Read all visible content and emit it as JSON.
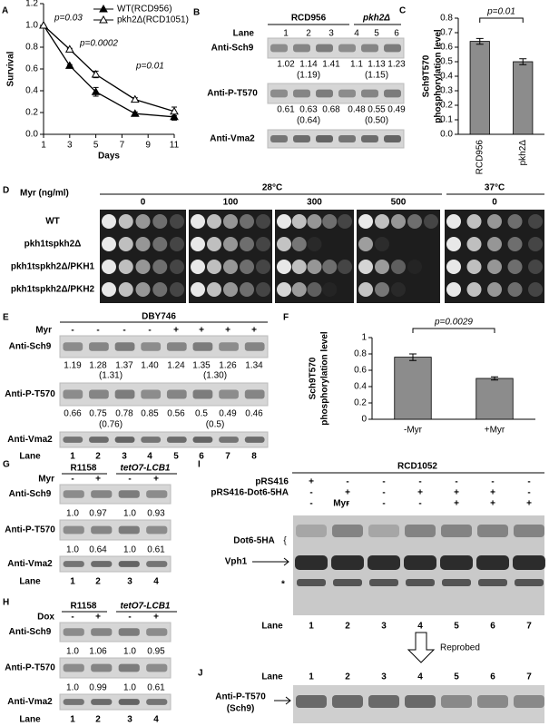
{
  "chart_data": [
    {
      "type": "line",
      "label": "A",
      "xlabel": "Days",
      "ylabel": "Survival",
      "x": [
        1,
        3,
        5,
        8,
        11
      ],
      "xlim": [
        1,
        11
      ],
      "xticks": [
        1,
        3,
        5,
        7,
        9,
        11
      ],
      "ylim": [
        0,
        1.2
      ],
      "yticks": [
        {
          "value": 0,
          "label": "0.0"
        },
        0.2,
        0.4,
        0.6,
        0.8,
        {
          "value": 1,
          "label": "1.0"
        },
        1.2
      ],
      "legend": "upper right",
      "series": [
        {
          "name": "WT(RCD956)",
          "color": "#000000",
          "marker": "filled",
          "values": [
            1,
            0.63,
            0.39,
            0.19,
            0.16
          ],
          "errors": [
            0,
            0.01,
            0.04,
            0.015,
            0.03
          ]
        },
        {
          "name": "pkh2Δ(RCD1051)",
          "color": "#000000",
          "marker": "hollow",
          "values": [
            1,
            0.78,
            0.55,
            0.32,
            0.21
          ],
          "errors": [
            0,
            0.01,
            0.03,
            0.015,
            0.04
          ]
        }
      ],
      "annotations": [
        "p=0.03",
        "p=0.0002",
        "p=0.01"
      ]
    },
    {
      "type": "bar",
      "label": "C",
      "ylabel": [
        "Sch9T570",
        "phosphorylation level"
      ],
      "categories": [
        "RCD956",
        "pkh2Δ"
      ],
      "values": [
        0.64,
        0.5
      ],
      "errors": [
        0.02,
        0.02
      ],
      "color": "#8c8c8c",
      "ylim": [
        0,
        0.8
      ],
      "yticks": [
        {
          "value": 0,
          "label": "0.0"
        },
        0.1,
        0.2,
        0.3,
        0.4,
        0.5,
        0.6,
        0.7,
        0.8
      ],
      "annotations": [
        "p=0.01"
      ]
    },
    {
      "type": "bar",
      "label": "F",
      "ylabel": [
        "Sch9T570",
        "phosphorylation level"
      ],
      "categories": [
        "-Myr",
        "+Myr"
      ],
      "values": [
        0.76,
        0.5
      ],
      "errors": [
        0.04,
        0.02
      ],
      "color": "#8c8c8c",
      "ylim": [
        0,
        1
      ],
      "yticks": [
        0,
        0.2,
        0.4,
        0.6,
        0.8,
        1
      ],
      "annotations": [
        "p=0.0029"
      ]
    }
  ],
  "blots": {
    "B": {
      "label": "B",
      "lane_title": "Lane",
      "groups": [
        "RCD956",
        "pkh2Δ"
      ],
      "lanes": [
        1,
        2,
        3,
        4,
        5,
        6
      ],
      "rows": [
        {
          "antibody": "Anti-Sch9",
          "values": [
            "1.02",
            "1.14",
            "1.41",
            "1.1",
            "1.13",
            "1.23"
          ],
          "means": [
            "(1.19)",
            "(1.15)"
          ]
        },
        {
          "antibody": "Anti-P-T570",
          "values": [
            "0.61",
            "0.63",
            "0.68",
            "0.48",
            "0.55",
            "0.49"
          ],
          "means": [
            "(0.64)",
            "(0.50)"
          ]
        },
        {
          "antibody": "Anti-Vma2"
        }
      ]
    },
    "D": {
      "label": "D",
      "treatment": "Myr (ng/ml)",
      "temperatures": [
        "28°C",
        "37°C"
      ],
      "concentrations": [
        "0",
        "100",
        "300",
        "500",
        "0"
      ],
      "strains": [
        "WT",
        "pkh1tspkh2Δ",
        "pkh1tspkh2Δ/PKH1",
        "pkh1tspkh2Δ/PKH2"
      ]
    },
    "E": {
      "label": "E",
      "strain": "DBY746",
      "treatment": "Myr",
      "signs": [
        "-",
        "-",
        "-",
        "-",
        "+",
        "+",
        "+",
        "+"
      ],
      "lane_title": "Lane",
      "lanes": [
        1,
        2,
        3,
        4,
        5,
        6,
        7,
        8
      ],
      "rows": [
        {
          "antibody": "Anti-Sch9",
          "values": [
            "1.19",
            "1.28",
            "1.37",
            "1.40",
            "1.24",
            "1.35",
            "1.26",
            "1.34"
          ],
          "means": [
            "(1.31)",
            "(1.30)"
          ]
        },
        {
          "antibody": "Anti-P-T570",
          "values": [
            "0.66",
            "0.75",
            "0.78",
            "0.85",
            "0.56",
            "0.5",
            "0.49",
            "0.46"
          ],
          "means": [
            "(0.76)",
            "(0.5)"
          ]
        },
        {
          "antibody": "Anti-Vma2"
        }
      ]
    },
    "G": {
      "label": "G",
      "groups": [
        "R1158",
        "tetO7-LCB1"
      ],
      "treatment": "Myr",
      "signs": [
        "-",
        "+",
        "-",
        "+"
      ],
      "lane_title": "Lane",
      "lanes": [
        1,
        2,
        3,
        4
      ],
      "rows": [
        {
          "antibody": "Anti-Sch9",
          "values": [
            "1.0",
            "0.97",
            "1.0",
            "0.93"
          ]
        },
        {
          "antibody": "Anti-P-T570",
          "values": [
            "1.0",
            "0.64",
            "1.0",
            "0.61"
          ]
        },
        {
          "antibody": "Anti-Vma2"
        }
      ]
    },
    "H": {
      "label": "H",
      "groups": [
        "R1158",
        "tetO7-LCB1"
      ],
      "treatment": "Dox",
      "signs": [
        "-",
        "+",
        "-",
        "+"
      ],
      "lane_title": "Lane",
      "lanes": [
        1,
        2,
        3,
        4
      ],
      "rows": [
        {
          "antibody": "Anti-Sch9",
          "values": [
            "1.0",
            "1.06",
            "1.0",
            "0.95"
          ]
        },
        {
          "antibody": "Anti-P-T570",
          "values": [
            "1.0",
            "0.99",
            "1.0",
            "0.61"
          ]
        },
        {
          "antibody": "Anti-Vma2"
        }
      ]
    },
    "I": {
      "label": "I",
      "strain": "RCD1052",
      "conditions": [
        {
          "name": "pRS416",
          "signs": [
            "+",
            "-",
            "-",
            "-",
            "-",
            "-",
            "-"
          ]
        },
        {
          "name": "pRS416-Dot6-5HA",
          "signs": [
            "-",
            "+",
            "-",
            "+",
            "+",
            "+",
            "-"
          ]
        },
        {
          "name": "Myr",
          "signs": [
            "-",
            "-",
            "-",
            "-",
            "+",
            "+",
            "+"
          ]
        }
      ],
      "bands": [
        "Dot6-5HA",
        "{",
        "Vph1",
        "*"
      ],
      "lane_title": "Lane",
      "lanes": [
        1,
        2,
        3,
        4,
        5,
        6,
        7
      ],
      "reprobe": "Reprobed"
    },
    "J": {
      "label": "J",
      "lane_title": "Lane",
      "lanes": [
        1,
        2,
        3,
        4,
        5,
        6,
        7
      ],
      "antibody": [
        "Anti-P-T570",
        "(Sch9)"
      ]
    }
  }
}
